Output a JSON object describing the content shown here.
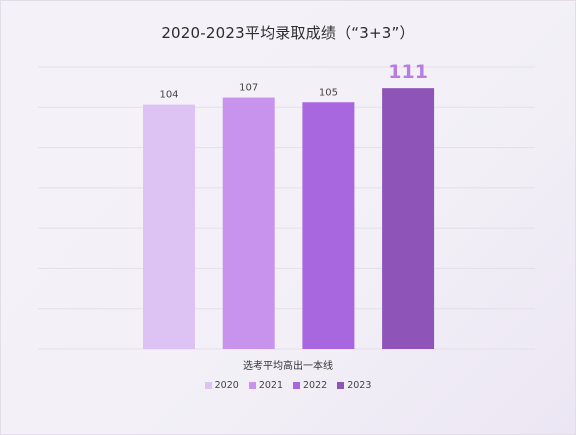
{
  "chart_data": {
    "type": "bar",
    "title": "2020-2023平均录取成绩（“3+3”）",
    "xlabel": "选考平均高出一本线",
    "ylabel": "",
    "categories": [
      "2020",
      "2021",
      "2022",
      "2023"
    ],
    "values": [
      104,
      107,
      105,
      111
    ],
    "colors": [
      "#dcc3f3",
      "#c893ed",
      "#a866df",
      "#8e54b8"
    ],
    "highlight": {
      "index": 3,
      "color": "#b77de0"
    },
    "ylim": [
      0,
      120
    ],
    "grid": true,
    "legend": {
      "position": "bottom",
      "items": [
        "2020",
        "2021",
        "2022",
        "2023"
      ]
    }
  }
}
